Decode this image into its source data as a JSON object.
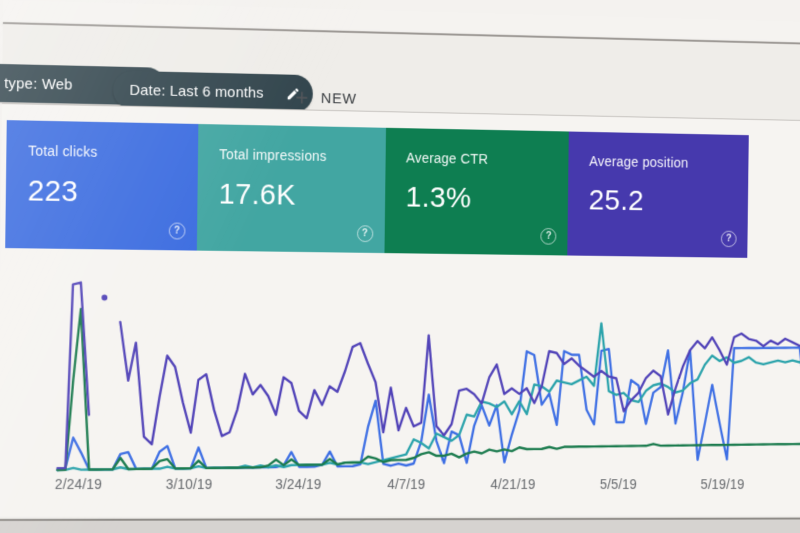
{
  "toolbar": {
    "search_type_chip": "type: Web",
    "date_chip": "Date: Last 6 months",
    "plus": "+",
    "new_button": "NEW"
  },
  "help_icon": "?",
  "cards": [
    {
      "id": "total-clicks",
      "label": "Total clicks",
      "value": "223",
      "color": "#3b6ce0"
    },
    {
      "id": "total-impressions",
      "label": "Total impressions",
      "value": "17.6K",
      "color": "#42a6a2"
    },
    {
      "id": "average-ctr",
      "label": "Average CTR",
      "value": "1.3%",
      "color": "#0e7e51"
    },
    {
      "id": "average-position",
      "label": "Average position",
      "value": "25.2",
      "color": "#4639ad"
    }
  ],
  "chart_data": {
    "type": "line",
    "x_ticks": [
      "2/24/19",
      "3/10/19",
      "3/24/19",
      "4/7/19",
      "4/21/19",
      "5/5/19",
      "5/19/19"
    ],
    "x_axis_note": "daily points, visible window of a 6-month range",
    "y_scale": "relative height 0-100 (no y-axis labels shown on screen)",
    "ylim": [
      0,
      100
    ],
    "grid": false,
    "legend_position": "none",
    "series": [
      {
        "name": "Clicks",
        "color": "#3e6fe4",
        "values": [
          0,
          1,
          17,
          9,
          0,
          0,
          0,
          0,
          8,
          9,
          0,
          0,
          0,
          9,
          12,
          0,
          0,
          0,
          11,
          0,
          0,
          0,
          0,
          0,
          0,
          0,
          0,
          0,
          0,
          1,
          8,
          0,
          0,
          0,
          1,
          8,
          0,
          0,
          0,
          1,
          21,
          35,
          1,
          0,
          1,
          0,
          1,
          13,
          38,
          13,
          1,
          18,
          16,
          1,
          21,
          32,
          21,
          32,
          1,
          16,
          29,
          61,
          59,
          32,
          38,
          21,
          61,
          59,
          59,
          29,
          21,
          61,
          62,
          22,
          22,
          45,
          42,
          21,
          38,
          41,
          61,
          21,
          38,
          61,
          1,
          21,
          42,
          21,
          1,
          62,
          62,
          62,
          62,
          62,
          62,
          62,
          62,
          62,
          62,
          21
        ]
      },
      {
        "name": "Impressions",
        "color": "#2ba3ab",
        "values": [
          0,
          0,
          1,
          0,
          0,
          0,
          0,
          0,
          1,
          0,
          0,
          0,
          0,
          0,
          1,
          0,
          0,
          0,
          1,
          0,
          0,
          0,
          0,
          0,
          1,
          0,
          1,
          0,
          1,
          0,
          1,
          1,
          1,
          1,
          1,
          2,
          1,
          2,
          2,
          2,
          1,
          2,
          3,
          4,
          5,
          6,
          14,
          12,
          9,
          17,
          15,
          13,
          16,
          27,
          26,
          34,
          33,
          31,
          34,
          27,
          34,
          27,
          43,
          42,
          39,
          45,
          44,
          43,
          45,
          47,
          42,
          76,
          39,
          37,
          38,
          34,
          33,
          39,
          42,
          43,
          41,
          38,
          39,
          43,
          45,
          53,
          58,
          55,
          57,
          54,
          55,
          57,
          54,
          53,
          54,
          55,
          54,
          55,
          54,
          55
        ]
      },
      {
        "name": "CTR",
        "color": "#1b7b4e",
        "values": [
          0,
          0,
          47,
          85,
          0,
          0,
          0,
          0,
          6,
          0,
          0,
          0,
          0,
          4,
          5,
          0,
          0,
          0,
          4,
          0,
          0,
          0,
          0,
          0,
          0,
          0,
          0,
          1,
          4,
          1,
          4,
          1,
          1,
          1,
          1,
          4,
          1,
          2,
          2,
          2,
          5,
          4,
          2,
          3,
          3,
          3,
          4,
          6,
          7,
          5,
          5,
          6,
          4,
          6,
          7,
          6,
          8,
          7,
          8,
          7,
          9,
          8,
          8,
          8,
          9,
          8,
          9,
          9,
          9,
          9,
          9,
          9,
          9,
          9,
          9,
          9,
          9,
          9,
          10,
          9,
          9,
          9,
          9,
          9,
          9,
          9,
          9,
          9,
          9,
          9,
          9,
          9,
          9,
          9,
          9,
          9,
          9,
          9,
          9,
          9
        ]
      },
      {
        "name": "Position",
        "color": "#5143b8",
        "values": [
          1,
          1,
          98,
          99,
          29,
          null,
          null,
          null,
          78,
          47,
          67,
          17,
          13,
          38,
          60,
          54,
          35,
          19,
          47,
          50,
          31,
          17,
          19,
          31,
          50,
          39,
          44,
          38,
          28,
          48,
          45,
          30,
          26,
          41,
          33,
          43,
          40,
          51,
          64,
          66,
          55,
          45,
          18,
          42,
          19,
          31,
          21,
          23,
          70,
          21,
          16,
          22,
          40,
          41,
          38,
          33,
          47,
          54,
          38,
          41,
          38,
          41,
          33,
          42,
          61,
          60,
          54,
          57,
          53,
          50,
          47,
          50,
          47,
          46,
          28,
          34,
          38,
          46,
          50,
          47,
          26,
          40,
          52,
          61,
          66,
          62,
          68,
          61,
          53,
          68,
          70,
          67,
          66,
          63,
          66,
          64,
          67,
          65,
          63,
          64
        ],
        "isolated_point": {
          "index": 6,
          "value": 91
        }
      }
    ]
  }
}
